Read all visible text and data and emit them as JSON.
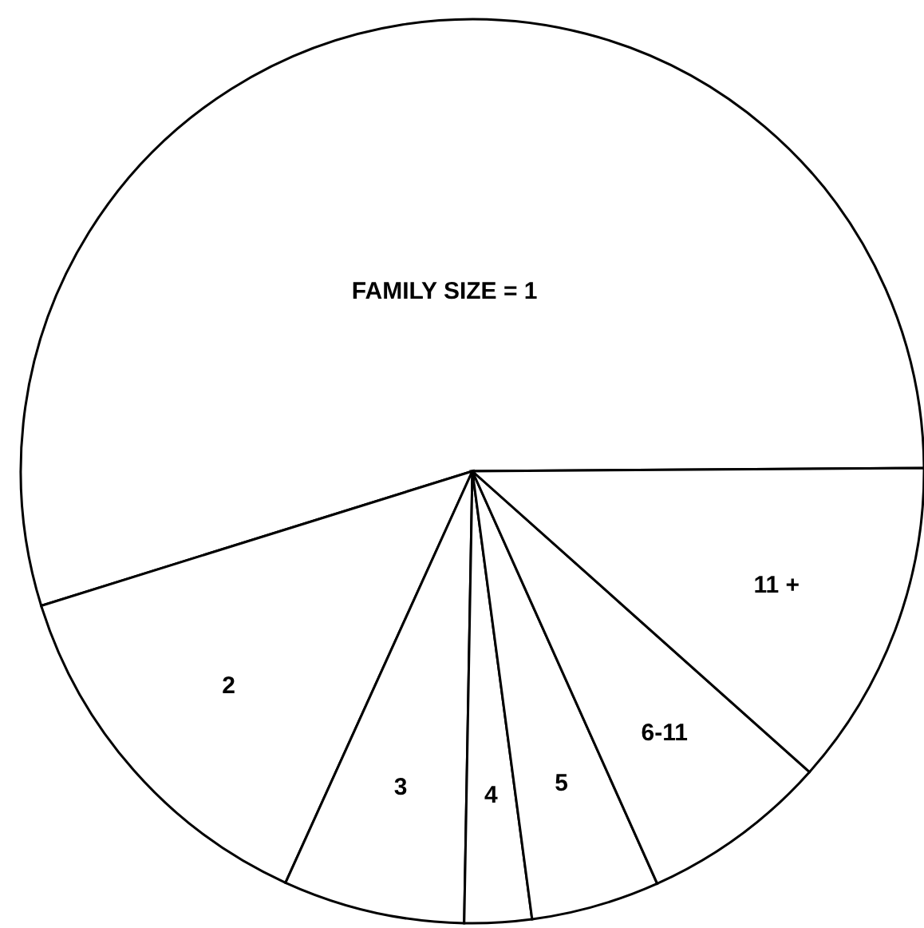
{
  "chart_data": {
    "type": "pie",
    "categories": [
      "FAMILY SIZE = 1",
      "2",
      "3",
      "4",
      "5",
      "6-11",
      "11 +"
    ],
    "values": [
      54.7,
      13.4,
      6.5,
      2.4,
      4.6,
      6.7,
      11.7
    ],
    "colors": [
      "#ffffff",
      "#ffffff",
      "#ffffff",
      "#ffffff",
      "#ffffff",
      "#ffffff",
      "#ffffff"
    ]
  }
}
